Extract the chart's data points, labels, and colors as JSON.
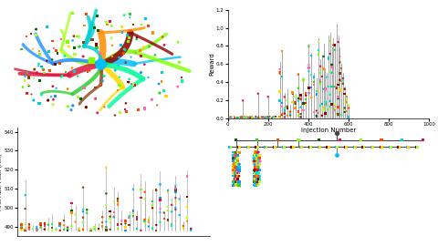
{
  "bg_color": "#ffffff",
  "reward_xlabel": "Injection Number",
  "reward_ylabel": "Reward",
  "reward_xlim": [
    0,
    1000
  ],
  "reward_ylim": [
    0,
    1.2
  ],
  "reward_yticks": [
    0,
    0.2,
    0.4,
    0.6,
    0.8,
    1.0,
    1.2
  ],
  "reward_xticks": [
    0,
    200,
    400,
    600,
    800,
    1000
  ],
  "abs_ylabel": "First Abs. Peak (nm)",
  "abs_ylim": [
    485,
    542
  ],
  "abs_yticks": [
    490,
    500,
    510,
    520,
    530,
    540
  ],
  "colors_main": [
    "#00bfff",
    "#7fff00",
    "#8b0000",
    "#ff8c00",
    "#ffd700",
    "#00ced1",
    "#adff2f",
    "#ff4500",
    "#006400",
    "#1e90ff",
    "#dc143c",
    "#00fa9a",
    "#ff69b4",
    "#32cd32",
    "#8b4513"
  ]
}
